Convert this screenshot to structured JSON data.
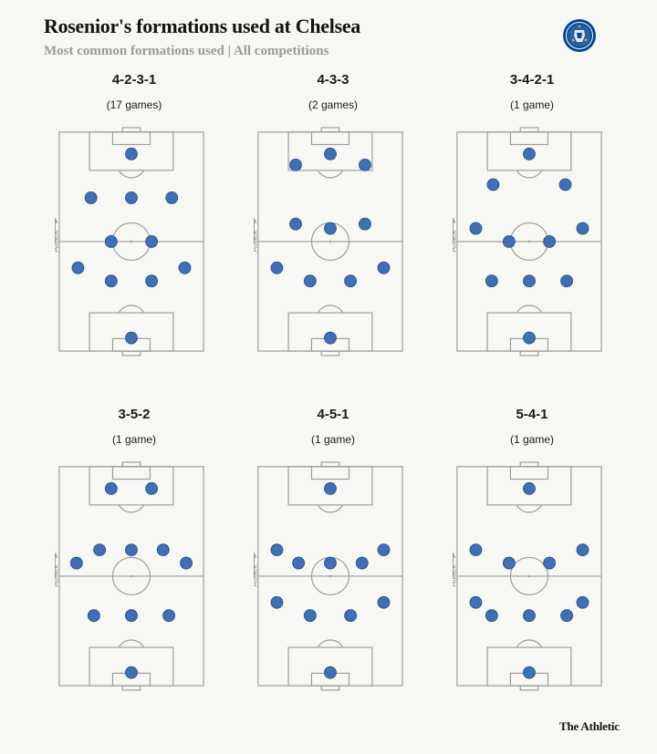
{
  "header": {
    "title": "Rosenior's formations used at Chelsea",
    "subtitle": "Most common formations used | All competitions"
  },
  "crest": {
    "icon": "chelsea-crest-icon",
    "lettering": "CHELSEA FOOTBALL CLUB",
    "color": "#034694"
  },
  "pitch_label": "Attack",
  "brand": "The Athletic",
  "colors": {
    "player": "#3f6fb5",
    "player_stroke": "#2c548f",
    "pitch_line": "#9b9b98",
    "background": "#f7f7f3"
  },
  "chart_data": {
    "type": "formation_diagram",
    "pitch_axes": "x: 0 = left touchline, 1 = right touchline; y: 0 = attacking goal line (top), 1 = own goal line (bottom)",
    "formations": [
      {
        "name": "4-2-3-1",
        "games": "(17 games)",
        "players": [
          {
            "x": 0.5,
            "y": 0.94
          },
          {
            "x": 0.13,
            "y": 0.62
          },
          {
            "x": 0.36,
            "y": 0.68
          },
          {
            "x": 0.64,
            "y": 0.68
          },
          {
            "x": 0.87,
            "y": 0.62
          },
          {
            "x": 0.36,
            "y": 0.5
          },
          {
            "x": 0.64,
            "y": 0.5
          },
          {
            "x": 0.22,
            "y": 0.3
          },
          {
            "x": 0.5,
            "y": 0.3
          },
          {
            "x": 0.78,
            "y": 0.3
          },
          {
            "x": 0.5,
            "y": 0.1
          }
        ]
      },
      {
        "name": "4-3-3",
        "games": "(2 games)",
        "players": [
          {
            "x": 0.5,
            "y": 0.94
          },
          {
            "x": 0.13,
            "y": 0.62
          },
          {
            "x": 0.36,
            "y": 0.68
          },
          {
            "x": 0.64,
            "y": 0.68
          },
          {
            "x": 0.87,
            "y": 0.62
          },
          {
            "x": 0.26,
            "y": 0.42
          },
          {
            "x": 0.5,
            "y": 0.44
          },
          {
            "x": 0.74,
            "y": 0.42
          },
          {
            "x": 0.26,
            "y": 0.15
          },
          {
            "x": 0.5,
            "y": 0.1
          },
          {
            "x": 0.74,
            "y": 0.15
          }
        ]
      },
      {
        "name": "3-4-2-1",
        "games": "(1 game)",
        "players": [
          {
            "x": 0.5,
            "y": 0.94
          },
          {
            "x": 0.24,
            "y": 0.68
          },
          {
            "x": 0.5,
            "y": 0.68
          },
          {
            "x": 0.76,
            "y": 0.68
          },
          {
            "x": 0.13,
            "y": 0.44
          },
          {
            "x": 0.36,
            "y": 0.5
          },
          {
            "x": 0.64,
            "y": 0.5
          },
          {
            "x": 0.87,
            "y": 0.44
          },
          {
            "x": 0.25,
            "y": 0.24
          },
          {
            "x": 0.75,
            "y": 0.24
          },
          {
            "x": 0.5,
            "y": 0.1
          }
        ]
      },
      {
        "name": "3-5-2",
        "games": "(1 game)",
        "players": [
          {
            "x": 0.5,
            "y": 0.94
          },
          {
            "x": 0.24,
            "y": 0.68
          },
          {
            "x": 0.5,
            "y": 0.68
          },
          {
            "x": 0.76,
            "y": 0.68
          },
          {
            "x": 0.12,
            "y": 0.44
          },
          {
            "x": 0.28,
            "y": 0.38
          },
          {
            "x": 0.5,
            "y": 0.38
          },
          {
            "x": 0.72,
            "y": 0.38
          },
          {
            "x": 0.88,
            "y": 0.44
          },
          {
            "x": 0.36,
            "y": 0.1
          },
          {
            "x": 0.64,
            "y": 0.1
          }
        ]
      },
      {
        "name": "4-5-1",
        "games": "(1 game)",
        "players": [
          {
            "x": 0.5,
            "y": 0.94
          },
          {
            "x": 0.13,
            "y": 0.62
          },
          {
            "x": 0.36,
            "y": 0.68
          },
          {
            "x": 0.64,
            "y": 0.68
          },
          {
            "x": 0.87,
            "y": 0.62
          },
          {
            "x": 0.13,
            "y": 0.38
          },
          {
            "x": 0.28,
            "y": 0.44
          },
          {
            "x": 0.5,
            "y": 0.44
          },
          {
            "x": 0.72,
            "y": 0.44
          },
          {
            "x": 0.87,
            "y": 0.38
          },
          {
            "x": 0.5,
            "y": 0.1
          }
        ]
      },
      {
        "name": "5-4-1",
        "games": "(1 game)",
        "players": [
          {
            "x": 0.5,
            "y": 0.94
          },
          {
            "x": 0.13,
            "y": 0.62
          },
          {
            "x": 0.24,
            "y": 0.68
          },
          {
            "x": 0.5,
            "y": 0.68
          },
          {
            "x": 0.76,
            "y": 0.68
          },
          {
            "x": 0.87,
            "y": 0.62
          },
          {
            "x": 0.13,
            "y": 0.38
          },
          {
            "x": 0.36,
            "y": 0.44
          },
          {
            "x": 0.64,
            "y": 0.44
          },
          {
            "x": 0.87,
            "y": 0.38
          },
          {
            "x": 0.5,
            "y": 0.1
          }
        ]
      }
    ]
  }
}
